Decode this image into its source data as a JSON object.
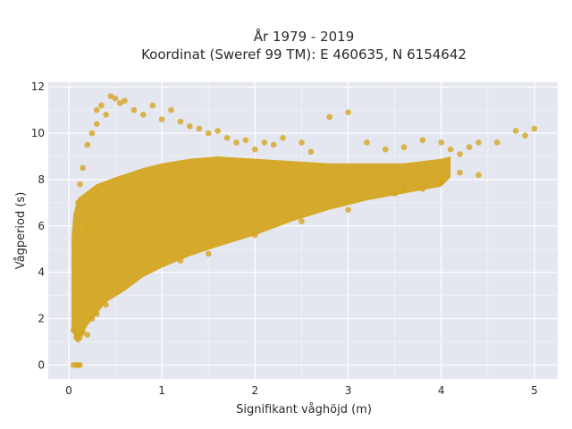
{
  "chart_data": {
    "type": "scatter",
    "title_line1": "År 1979 - 2019",
    "title_line2": "Koordinat (Sweref 99 TM): E 460635, N 6154642",
    "xlabel": "Signifikant våghöjd (m)",
    "ylabel": "Vågperiod (s)",
    "xlim": [
      -0.22,
      5.25
    ],
    "ylim": [
      -0.6,
      12.2
    ],
    "xticks": [
      0,
      1,
      2,
      3,
      4,
      5
    ],
    "yticks": [
      0,
      2,
      4,
      6,
      8,
      10,
      12
    ],
    "grid": true,
    "background": "#e5e7f0",
    "marker_color": "#d4a520",
    "series": [
      {
        "name": "",
        "points": [
          [
            0.05,
            0
          ],
          [
            0.08,
            0
          ],
          [
            0.1,
            0
          ],
          [
            0.12,
            0
          ],
          [
            0.05,
            1.5
          ],
          [
            0.08,
            1.2
          ],
          [
            0.1,
            1.1
          ],
          [
            0.12,
            1.2
          ],
          [
            0.15,
            1.4
          ],
          [
            0.2,
            1.3
          ],
          [
            0.1,
            7.0
          ],
          [
            0.12,
            7.8
          ],
          [
            0.15,
            8.5
          ],
          [
            0.2,
            9.5
          ],
          [
            0.25,
            10.0
          ],
          [
            0.3,
            10.4
          ],
          [
            0.3,
            11.0
          ],
          [
            0.35,
            11.2
          ],
          [
            0.4,
            10.8
          ],
          [
            0.45,
            11.6
          ],
          [
            0.5,
            11.5
          ],
          [
            0.55,
            11.3
          ],
          [
            0.6,
            11.4
          ],
          [
            0.7,
            11.0
          ],
          [
            0.8,
            10.8
          ],
          [
            0.9,
            11.2
          ],
          [
            1.0,
            10.6
          ],
          [
            1.1,
            11.0
          ],
          [
            1.2,
            10.5
          ],
          [
            1.3,
            10.3
          ],
          [
            1.4,
            10.2
          ],
          [
            1.5,
            10.0
          ],
          [
            1.6,
            10.1
          ],
          [
            1.7,
            9.8
          ],
          [
            1.8,
            9.6
          ],
          [
            1.9,
            9.7
          ],
          [
            2.0,
            9.3
          ],
          [
            2.1,
            9.6
          ],
          [
            2.2,
            9.5
          ],
          [
            2.3,
            9.8
          ],
          [
            2.5,
            9.6
          ],
          [
            2.6,
            9.2
          ],
          [
            2.8,
            10.7
          ],
          [
            3.0,
            10.9
          ],
          [
            3.2,
            9.6
          ],
          [
            3.4,
            9.3
          ],
          [
            3.6,
            9.4
          ],
          [
            3.8,
            9.7
          ],
          [
            4.0,
            9.6
          ],
          [
            4.1,
            9.3
          ],
          [
            4.2,
            9.1
          ],
          [
            4.3,
            9.4
          ],
          [
            4.4,
            9.6
          ],
          [
            4.6,
            9.6
          ],
          [
            4.8,
            10.1
          ],
          [
            4.9,
            9.9
          ],
          [
            5.0,
            10.2
          ],
          [
            3.5,
            7.4
          ],
          [
            3.6,
            7.6
          ],
          [
            3.8,
            7.6
          ],
          [
            4.0,
            7.9
          ],
          [
            4.2,
            8.3
          ],
          [
            4.4,
            8.2
          ],
          [
            0.2,
            6.0
          ],
          [
            0.25,
            2.0
          ],
          [
            0.3,
            2.2
          ],
          [
            0.4,
            2.6
          ],
          [
            1.2,
            4.5
          ],
          [
            1.5,
            4.8
          ],
          [
            2.0,
            5.6
          ],
          [
            2.5,
            6.2
          ],
          [
            3.0,
            6.7
          ]
        ]
      }
    ],
    "density_shape": {
      "upper": [
        [
          0.03,
          5.5
        ],
        [
          0.05,
          6.5
        ],
        [
          0.1,
          7.2
        ],
        [
          0.2,
          7.5
        ],
        [
          0.3,
          7.8
        ],
        [
          0.5,
          8.1
        ],
        [
          0.8,
          8.5
        ],
        [
          1.0,
          8.7
        ],
        [
          1.3,
          8.9
        ],
        [
          1.6,
          9.0
        ],
        [
          2.0,
          8.9
        ],
        [
          2.4,
          8.8
        ],
        [
          2.8,
          8.7
        ],
        [
          3.2,
          8.7
        ],
        [
          3.6,
          8.7
        ],
        [
          4.0,
          8.9
        ],
        [
          4.1,
          9.0
        ]
      ],
      "lower": [
        [
          0.03,
          1.5
        ],
        [
          0.08,
          1.1
        ],
        [
          0.15,
          1.3
        ],
        [
          0.2,
          1.7
        ],
        [
          0.3,
          2.2
        ],
        [
          0.4,
          2.7
        ],
        [
          0.6,
          3.2
        ],
        [
          0.8,
          3.8
        ],
        [
          1.0,
          4.2
        ],
        [
          1.3,
          4.7
        ],
        [
          1.6,
          5.1
        ],
        [
          2.0,
          5.6
        ],
        [
          2.4,
          6.2
        ],
        [
          2.8,
          6.7
        ],
        [
          3.2,
          7.1
        ],
        [
          3.6,
          7.4
        ],
        [
          4.0,
          7.7
        ],
        [
          4.1,
          8.1
        ]
      ]
    }
  }
}
